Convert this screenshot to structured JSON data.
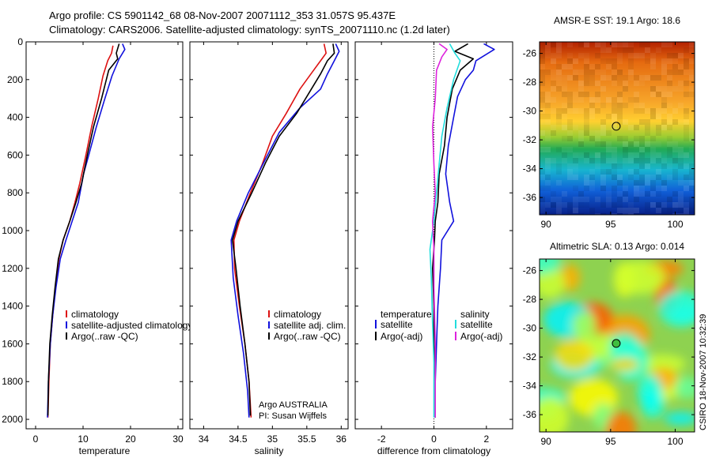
{
  "title": {
    "line1": "Argo profile: CS 5901142_68 08-Nov-2007 20071112_353 31.057S 95.437E",
    "line2": "Climatology: CARS2006. Satellite-adjusted climatology: synTS_20071110.nc (1.2d later)"
  },
  "footer_stamp": "CSIRO 18-Nov-2007 10:32:39",
  "colors": {
    "red": "#dd1111",
    "blue": "#1111dd",
    "black": "#000000",
    "cyan": "#22dddd",
    "magenta": "#dd22dd"
  },
  "chart_data": [
    {
      "type": "line",
      "xlabel": "temperature",
      "xlim": [
        -2,
        31
      ],
      "ylim": [
        2050,
        0
      ],
      "xticks": [
        0,
        10,
        20,
        30
      ],
      "yticks": [
        0,
        200,
        400,
        600,
        800,
        1000,
        1200,
        1400,
        1600,
        1800,
        2000
      ],
      "legend": {
        "placement": "lower-right",
        "entries": [
          "climatology",
          "satellite-adjusted climatology",
          "Argo(..raw -QC)"
        ]
      },
      "series": [
        {
          "name": "climatology",
          "color": "red",
          "points": [
            [
              16.3,
              20
            ],
            [
              16.0,
              60
            ],
            [
              15.2,
              100
            ],
            [
              14.2,
              180
            ],
            [
              13.2,
              300
            ],
            [
              11.8,
              450
            ],
            [
              10.6,
              600
            ],
            [
              9.3,
              750
            ],
            [
              8.3,
              850
            ],
            [
              7.2,
              950
            ],
            [
              5.8,
              1050
            ],
            [
              4.9,
              1150
            ],
            [
              4.2,
              1300
            ],
            [
              3.6,
              1450
            ],
            [
              3.1,
              1600
            ],
            [
              2.8,
              1800
            ],
            [
              2.6,
              1990
            ]
          ]
        },
        {
          "name": "satellite-adjusted climatology",
          "color": "blue",
          "points": [
            [
              18.3,
              10
            ],
            [
              18.8,
              40
            ],
            [
              17.6,
              90
            ],
            [
              16.1,
              180
            ],
            [
              14.6,
              300
            ],
            [
              12.8,
              450
            ],
            [
              11.2,
              600
            ],
            [
              10.1,
              700
            ],
            [
              9.0,
              850
            ],
            [
              7.7,
              950
            ],
            [
              6.4,
              1050
            ],
            [
              5.2,
              1150
            ],
            [
              4.3,
              1300
            ],
            [
              3.6,
              1450
            ],
            [
              3.1,
              1600
            ],
            [
              2.7,
              1800
            ],
            [
              2.5,
              1990
            ]
          ]
        },
        {
          "name": "Argo(..raw -QC)",
          "color": "black",
          "points": [
            [
              17.6,
              10
            ],
            [
              17.0,
              60
            ],
            [
              17.3,
              90
            ],
            [
              15.4,
              150
            ],
            [
              13.9,
              300
            ],
            [
              12.2,
              450
            ],
            [
              10.9,
              600
            ],
            [
              9.7,
              750
            ],
            [
              8.5,
              850
            ],
            [
              7.2,
              950
            ],
            [
              5.8,
              1050
            ],
            [
              4.8,
              1150
            ],
            [
              4.1,
              1300
            ],
            [
              3.5,
              1450
            ],
            [
              3.0,
              1600
            ],
            [
              2.7,
              1800
            ],
            [
              2.6,
              1980
            ]
          ]
        }
      ],
      "annotations": []
    },
    {
      "type": "line",
      "xlabel": "salinity",
      "xlim": [
        33.8,
        36.1
      ],
      "ylim": [
        2050,
        0
      ],
      "xticks": [
        34,
        34.5,
        35,
        35.5,
        36
      ],
      "xtick_labels": [
        "34",
        "34.5",
        "35",
        "35.5",
        "36"
      ],
      "legend": {
        "placement": "lower-right",
        "entries": [
          "climatology",
          "satellite adj. clim.",
          "Argo(..raw -QC)"
        ]
      },
      "series": [
        {
          "name": "climatology",
          "color": "red",
          "points": [
            [
              35.75,
              10
            ],
            [
              35.78,
              60
            ],
            [
              35.72,
              90
            ],
            [
              35.58,
              160
            ],
            [
              35.4,
              250
            ],
            [
              35.2,
              380
            ],
            [
              35.0,
              500
            ],
            [
              34.85,
              650
            ],
            [
              34.68,
              800
            ],
            [
              34.52,
              950
            ],
            [
              34.44,
              1050
            ],
            [
              34.45,
              1200
            ],
            [
              34.52,
              1400
            ],
            [
              34.6,
              1600
            ],
            [
              34.66,
              1800
            ],
            [
              34.69,
              1990
            ]
          ]
        },
        {
          "name": "satellite adj. clim.",
          "color": "blue",
          "points": [
            [
              35.92,
              10
            ],
            [
              35.97,
              50
            ],
            [
              35.9,
              100
            ],
            [
              35.8,
              170
            ],
            [
              35.7,
              250
            ],
            [
              35.4,
              350
            ],
            [
              35.1,
              480
            ],
            [
              34.9,
              620
            ],
            [
              34.65,
              800
            ],
            [
              34.48,
              950
            ],
            [
              34.4,
              1050
            ],
            [
              34.43,
              1250
            ],
            [
              34.5,
              1450
            ],
            [
              34.58,
              1650
            ],
            [
              34.64,
              1850
            ],
            [
              34.66,
              1990
            ]
          ]
        },
        {
          "name": "Argo(..raw -QC)",
          "color": "black",
          "points": [
            [
              35.88,
              10
            ],
            [
              35.9,
              60
            ],
            [
              35.8,
              100
            ],
            [
              35.7,
              170
            ],
            [
              35.55,
              260
            ],
            [
              35.35,
              380
            ],
            [
              35.1,
              500
            ],
            [
              34.9,
              640
            ],
            [
              34.7,
              800
            ],
            [
              34.5,
              950
            ],
            [
              34.42,
              1050
            ],
            [
              34.47,
              1200
            ],
            [
              34.53,
              1400
            ],
            [
              34.6,
              1600
            ],
            [
              34.66,
              1800
            ],
            [
              34.68,
              1980
            ]
          ]
        }
      ],
      "annotations": [
        "Argo AUSTRALIA",
        "PI: Susan Wijffels"
      ]
    },
    {
      "type": "line",
      "xlabel": "difference from climatology",
      "xlim": [
        -3,
        3
      ],
      "ylim": [
        2050,
        0
      ],
      "xticks": [
        -2,
        0,
        2
      ],
      "legend": {
        "placement": "lower-center",
        "headers": [
          "temperature",
          "salinity"
        ],
        "entries": [
          "satellite",
          "Argo(-adj)",
          "satellite",
          "Argo(-adj)"
        ]
      },
      "series": [
        {
          "name": "satellite",
          "group": "temperature",
          "color": "blue",
          "points": [
            [
              1.9,
              10
            ],
            [
              2.3,
              40
            ],
            [
              1.6,
              100
            ],
            [
              1.5,
              150
            ],
            [
              1.2,
              200
            ],
            [
              0.9,
              290
            ],
            [
              0.75,
              400
            ],
            [
              0.55,
              550
            ],
            [
              0.45,
              700
            ],
            [
              0.6,
              850
            ],
            [
              0.75,
              950
            ],
            [
              0.3,
              1050
            ],
            [
              0.25,
              1200
            ],
            [
              0.15,
              1400
            ],
            [
              0.1,
              1600
            ],
            [
              0.05,
              1800
            ],
            [
              0.05,
              1990
            ]
          ]
        },
        {
          "name": "Argo(-adj)",
          "group": "temperature",
          "color": "black",
          "points": [
            [
              1.3,
              10
            ],
            [
              0.8,
              50
            ],
            [
              1.5,
              90
            ],
            [
              1.0,
              150
            ],
            [
              0.7,
              250
            ],
            [
              0.5,
              400
            ],
            [
              0.4,
              550
            ],
            [
              0.2,
              700
            ],
            [
              0.15,
              850
            ],
            [
              0.05,
              950
            ],
            [
              0.02,
              1050
            ],
            [
              -0.05,
              1200
            ],
            [
              0.0,
              1400
            ],
            [
              0.0,
              1600
            ],
            [
              0.05,
              1800
            ],
            [
              0.05,
              1990
            ]
          ]
        },
        {
          "name": "satellite",
          "group": "salinity",
          "color": "cyan",
          "points": [
            [
              0.6,
              10
            ],
            [
              0.8,
              60
            ],
            [
              1.0,
              100
            ],
            [
              0.75,
              200
            ],
            [
              0.5,
              350
            ],
            [
              0.3,
              500
            ],
            [
              0.2,
              650
            ],
            [
              0.1,
              800
            ],
            [
              0.0,
              950
            ],
            [
              -0.15,
              1100
            ],
            [
              -0.1,
              1250
            ],
            [
              -0.05,
              1500
            ],
            [
              0.0,
              1700
            ],
            [
              0.0,
              1990
            ]
          ]
        },
        {
          "name": "Argo(-adj)",
          "group": "salinity",
          "color": "magenta",
          "points": [
            [
              0.2,
              10
            ],
            [
              0.5,
              40
            ],
            [
              0.3,
              80
            ],
            [
              0.1,
              150
            ],
            [
              0.05,
              300
            ],
            [
              -0.05,
              450
            ],
            [
              0.0,
              650
            ],
            [
              0.05,
              800
            ],
            [
              -0.05,
              950
            ],
            [
              0.0,
              1100
            ],
            [
              0.0,
              1300
            ],
            [
              0.05,
              1600
            ],
            [
              0.05,
              1990
            ]
          ]
        }
      ],
      "annotations": []
    },
    {
      "type": "heatmap",
      "title": "AMSR-E SST: 19.1 Argo: 18.6",
      "xlim": [
        89.5,
        101.5
      ],
      "ylim": [
        -37.2,
        -25.2
      ],
      "xticks": [
        90,
        95,
        100
      ],
      "yticks": [
        -26,
        -28,
        -30,
        -32,
        -34,
        -36
      ],
      "colormap": "jet",
      "marker": {
        "lon": 95.437,
        "lat": -31.057
      }
    },
    {
      "type": "heatmap",
      "title": "Altimetric SLA: 0.13 Argo: 0.014",
      "xlim": [
        89.5,
        101.5
      ],
      "ylim": [
        -37.2,
        -25.2
      ],
      "xticks": [
        90,
        95,
        100
      ],
      "yticks": [
        -26,
        -28,
        -30,
        -32,
        -34,
        -36
      ],
      "colormap": "jet",
      "marker": {
        "lon": 95.437,
        "lat": -31.057
      }
    }
  ]
}
